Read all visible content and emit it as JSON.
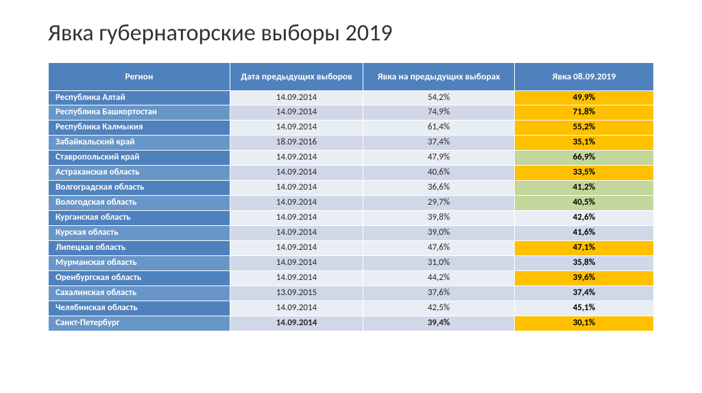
{
  "title": "Явка губернаторские выборы 2019",
  "table": {
    "headers": {
      "region": "Регион",
      "prev_date": "Дата предыдущих выборов",
      "prev_turnout": "Явка на предыдущих выборах",
      "curr_turnout": "Явка 08.09.2019"
    },
    "highlight_colors": {
      "decrease": "#ffc000",
      "increase": "#c3d69b",
      "neutral_odd": "#e9edf4",
      "neutral_even": "#d0d8e8"
    },
    "rows": [
      {
        "region": "Республика Алтай",
        "prev_date": "14.09.2014",
        "prev": "54,2%",
        "curr": "49,9%",
        "hl": "decrease",
        "bold": false
      },
      {
        "region": "Республика Башкортостан",
        "prev_date": "14.09.2014",
        "prev": "74,9%",
        "curr": "71,8%",
        "hl": "decrease",
        "bold": false
      },
      {
        "region": "Республика Калмыкия",
        "prev_date": "14.09.2014",
        "prev": "61,4%",
        "curr": "55,2%",
        "hl": "decrease",
        "bold": false
      },
      {
        "region": "Забайкальский край",
        "prev_date": "18.09.2016",
        "prev": "37,4%",
        "curr": "35,1%",
        "hl": "decrease",
        "bold": false
      },
      {
        "region": "Ставропольский край",
        "prev_date": "14.09.2014",
        "prev": "47,9%",
        "curr": "66,9%",
        "hl": "increase",
        "bold": false
      },
      {
        "region": "Астраханская область",
        "prev_date": "14.09.2014",
        "prev": "40,6%",
        "curr": "33,5%",
        "hl": "decrease",
        "bold": false
      },
      {
        "region": "Волгоградская область",
        "prev_date": "14.09.2014",
        "prev": "36,6%",
        "curr": "41,2%",
        "hl": "increase",
        "bold": false
      },
      {
        "region": "Вологодская область",
        "prev_date": "14.09.2014",
        "prev": "29,7%",
        "curr": "40,5%",
        "hl": "increase",
        "bold": false
      },
      {
        "region": "Курганская область",
        "prev_date": "14.09.2014",
        "prev": "39,8%",
        "curr": "42,6%",
        "hl": "neutral",
        "bold": false
      },
      {
        "region": "Курская область",
        "prev_date": "14.09.2014",
        "prev": "39,0%",
        "curr": "41,6%",
        "hl": "neutral",
        "bold": false
      },
      {
        "region": "Липецкая область",
        "prev_date": "14.09.2014",
        "prev": "47,6%",
        "curr": "47,1%",
        "hl": "decrease",
        "bold": false
      },
      {
        "region": "Мурманская область",
        "prev_date": "14.09.2014",
        "prev": "31,0%",
        "curr": "35,8%",
        "hl": "neutral",
        "bold": false
      },
      {
        "region": "Оренбургская область",
        "prev_date": "14.09.2014",
        "prev": "44,2%",
        "curr": "39,6%",
        "hl": "decrease",
        "bold": false
      },
      {
        "region": "Сахалинская область",
        "prev_date": "13.09.2015",
        "prev": "37,6%",
        "curr": "37,4%",
        "hl": "neutral",
        "bold": false
      },
      {
        "region": "Челябинская область",
        "prev_date": "14.09.2014",
        "prev": "42,5%",
        "curr": "45,1%",
        "hl": "neutral",
        "bold": false
      },
      {
        "region": "Санкт-Петербург",
        "prev_date": "14.09.2014",
        "prev": "39,4%",
        "curr": "30,1%",
        "hl": "decrease",
        "bold": true
      }
    ]
  }
}
